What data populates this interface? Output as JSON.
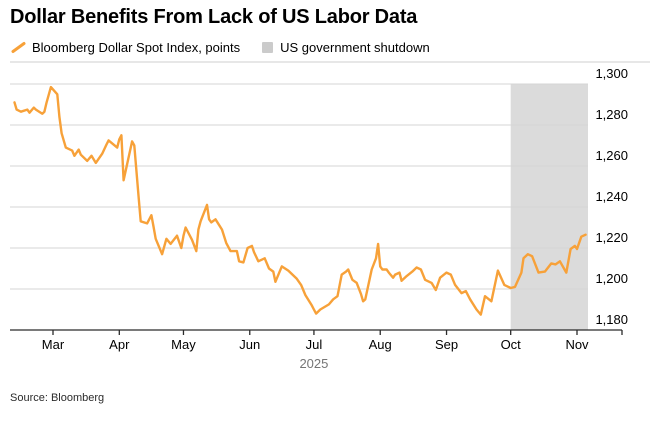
{
  "header": {
    "title": "Dollar Benefits From Lack of US Labor Data"
  },
  "legend": {
    "items": [
      {
        "label": "Bloomberg Dollar Spot Index, points",
        "marker": "line",
        "color": "#F7A139"
      },
      {
        "label": "US government shutdown",
        "marker": "square",
        "color": "#CBCBCB"
      }
    ]
  },
  "source": "Source: Bloomberg",
  "colors": {
    "line": "#F7A139",
    "shutdown_band": "#DBDBDB",
    "gridline": "#D6D6D6",
    "top_rule": "#CFCFCF",
    "axis": "#2B2B2B"
  },
  "chart_data": {
    "type": "line",
    "title": "Dollar Benefits From Lack of US Labor Data",
    "series_name": "Bloomberg Dollar Spot Index, points",
    "ylabel": "points",
    "ylim": [
      1180,
      1300
    ],
    "yticks": [
      1300,
      1280,
      1260,
      1240,
      1220,
      1200,
      1180
    ],
    "ytick_labels": [
      "1,300",
      "1,280",
      "1,260",
      "1,240",
      "1,220",
      "1,200",
      "1,180"
    ],
    "xtick_labels": [
      "Mar",
      "Apr",
      "May",
      "Jun",
      "Jul",
      "Aug",
      "Sep",
      "Oct",
      "Nov"
    ],
    "year_label": "2025",
    "grid": true,
    "legend_position": "top",
    "shading": {
      "label": "US government shutdown",
      "start": "2025-10-01",
      "end": "2025-11-05"
    },
    "points": [
      [
        "2025-02-11",
        1291
      ],
      [
        "2025-02-12",
        1287.5
      ],
      [
        "2025-02-14",
        1286.5
      ],
      [
        "2025-02-17",
        1287.5
      ],
      [
        "2025-02-18",
        1286
      ],
      [
        "2025-02-20",
        1288.5
      ],
      [
        "2025-02-21",
        1287.5
      ],
      [
        "2025-02-24",
        1285.5
      ],
      [
        "2025-02-25",
        1286.5
      ],
      [
        "2025-02-26",
        1291
      ],
      [
        "2025-02-28",
        1298.5
      ],
      [
        "2025-03-03",
        1295
      ],
      [
        "2025-03-04",
        1284
      ],
      [
        "2025-03-05",
        1276
      ],
      [
        "2025-03-07",
        1269
      ],
      [
        "2025-03-10",
        1267.5
      ],
      [
        "2025-03-11",
        1265
      ],
      [
        "2025-03-13",
        1268
      ],
      [
        "2025-03-14",
        1265.5
      ],
      [
        "2025-03-17",
        1262.5
      ],
      [
        "2025-03-19",
        1265
      ],
      [
        "2025-03-21",
        1261.5
      ],
      [
        "2025-03-24",
        1266
      ],
      [
        "2025-03-26",
        1270.5
      ],
      [
        "2025-03-27",
        1272.5
      ],
      [
        "2025-03-31",
        1269
      ],
      [
        "2025-04-01",
        1273
      ],
      [
        "2025-04-02",
        1275
      ],
      [
        "2025-04-03",
        1253
      ],
      [
        "2025-04-07",
        1272
      ],
      [
        "2025-04-08",
        1270
      ],
      [
        "2025-04-10",
        1245
      ],
      [
        "2025-04-11",
        1233
      ],
      [
        "2025-04-14",
        1232
      ],
      [
        "2025-04-16",
        1236
      ],
      [
        "2025-04-17",
        1230.5
      ],
      [
        "2025-04-18",
        1224.5
      ],
      [
        "2025-04-21",
        1217
      ],
      [
        "2025-04-23",
        1224.5
      ],
      [
        "2025-04-25",
        1222
      ],
      [
        "2025-04-28",
        1226
      ],
      [
        "2025-04-30",
        1220
      ],
      [
        "2025-05-01",
        1226
      ],
      [
        "2025-05-02",
        1230
      ],
      [
        "2025-05-05",
        1224
      ],
      [
        "2025-05-07",
        1218.5
      ],
      [
        "2025-05-08",
        1229
      ],
      [
        "2025-05-09",
        1233
      ],
      [
        "2025-05-12",
        1241
      ],
      [
        "2025-05-13",
        1234
      ],
      [
        "2025-05-14",
        1232.5
      ],
      [
        "2025-05-16",
        1234
      ],
      [
        "2025-05-19",
        1229
      ],
      [
        "2025-05-21",
        1222.5
      ],
      [
        "2025-05-23",
        1218.5
      ],
      [
        "2025-05-26",
        1218.5
      ],
      [
        "2025-05-27",
        1213.5
      ],
      [
        "2025-05-29",
        1213
      ],
      [
        "2025-05-31",
        1220
      ],
      [
        "2025-06-02",
        1221
      ],
      [
        "2025-06-03",
        1218
      ],
      [
        "2025-06-05",
        1213.5
      ],
      [
        "2025-06-08",
        1215
      ],
      [
        "2025-06-10",
        1210
      ],
      [
        "2025-06-12",
        1208.5
      ],
      [
        "2025-06-13",
        1203.5
      ],
      [
        "2025-06-16",
        1211
      ],
      [
        "2025-06-19",
        1209
      ],
      [
        "2025-06-23",
        1205
      ],
      [
        "2025-06-25",
        1202
      ],
      [
        "2025-06-27",
        1197
      ],
      [
        "2025-06-30",
        1192
      ],
      [
        "2025-07-01",
        1190
      ],
      [
        "2025-07-02",
        1188
      ],
      [
        "2025-07-04",
        1190
      ],
      [
        "2025-07-08",
        1192.5
      ],
      [
        "2025-07-10",
        1195
      ],
      [
        "2025-07-12",
        1196.5
      ],
      [
        "2025-07-14",
        1207
      ],
      [
        "2025-07-16",
        1208.5
      ],
      [
        "2025-07-17",
        1209.5
      ],
      [
        "2025-07-19",
        1204.5
      ],
      [
        "2025-07-21",
        1203
      ],
      [
        "2025-07-23",
        1197.5
      ],
      [
        "2025-07-24",
        1194
      ],
      [
        "2025-07-25",
        1195
      ],
      [
        "2025-07-28",
        1209.5
      ],
      [
        "2025-07-30",
        1215
      ],
      [
        "2025-07-31",
        1222
      ],
      [
        "2025-08-01",
        1211
      ],
      [
        "2025-08-02",
        1209.5
      ],
      [
        "2025-08-04",
        1209.5
      ],
      [
        "2025-08-05",
        1208
      ],
      [
        "2025-08-07",
        1205.5
      ],
      [
        "2025-08-08",
        1207
      ],
      [
        "2025-08-10",
        1208
      ],
      [
        "2025-08-11",
        1204
      ],
      [
        "2025-08-13",
        1206
      ],
      [
        "2025-08-16",
        1208.5
      ],
      [
        "2025-08-18",
        1210.5
      ],
      [
        "2025-08-20",
        1209.5
      ],
      [
        "2025-08-22",
        1204.5
      ],
      [
        "2025-08-25",
        1203
      ],
      [
        "2025-08-27",
        1199.5
      ],
      [
        "2025-08-29",
        1205.5
      ],
      [
        "2025-09-01",
        1208
      ],
      [
        "2025-09-03",
        1207
      ],
      [
        "2025-09-05",
        1202
      ],
      [
        "2025-09-08",
        1198
      ],
      [
        "2025-09-10",
        1199
      ],
      [
        "2025-09-12",
        1195
      ],
      [
        "2025-09-15",
        1190
      ],
      [
        "2025-09-17",
        1187.5
      ],
      [
        "2025-09-19",
        1196.5
      ],
      [
        "2025-09-22",
        1194
      ],
      [
        "2025-09-25",
        1209
      ],
      [
        "2025-09-28",
        1202
      ],
      [
        "2025-10-01",
        1200.5
      ],
      [
        "2025-10-03",
        1201
      ],
      [
        "2025-10-06",
        1208
      ],
      [
        "2025-10-07",
        1215
      ],
      [
        "2025-10-09",
        1217
      ],
      [
        "2025-10-11",
        1216
      ],
      [
        "2025-10-14",
        1208
      ],
      [
        "2025-10-17",
        1208.5
      ],
      [
        "2025-10-20",
        1212.5
      ],
      [
        "2025-10-22",
        1212
      ],
      [
        "2025-10-24",
        1213.5
      ],
      [
        "2025-10-27",
        1208
      ],
      [
        "2025-10-29",
        1219.5
      ],
      [
        "2025-10-31",
        1221
      ],
      [
        "2025-11-01",
        1219.5
      ],
      [
        "2025-11-03",
        1225.5
      ],
      [
        "2025-11-05",
        1226.5
      ]
    ]
  }
}
